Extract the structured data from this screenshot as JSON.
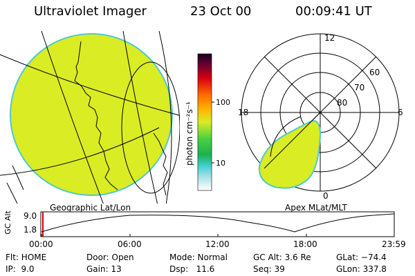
{
  "header": {
    "instrument": "Ultraviolet Imager",
    "date": "23 Oct 00",
    "time": "00:09:41 UT"
  },
  "geo_panel": {
    "caption": "Geographic Lat/Lon"
  },
  "colorbar": {
    "unit_label": "photon cm⁻²s⁻¹",
    "ticks": [
      "100",
      "10"
    ]
  },
  "polar_panel": {
    "caption": "Apex MLat/MLT",
    "mlt_labels": {
      "top": "12",
      "left": "18",
      "right": "6",
      "bottom": "0"
    },
    "lat_labels": [
      "60",
      "70",
      "80"
    ]
  },
  "orbit": {
    "ylabel": "GC Alt",
    "y_ticks": [
      "9.0",
      "1.8"
    ],
    "time_ticks": [
      "00:00",
      "06:00",
      "12:00",
      "18:00",
      "23:59"
    ]
  },
  "info_rows": [
    [
      "Flt: HOME",
      "Door: Open",
      "Mode: Normal",
      "GC Alt: 3.6 Re",
      "GLat: −74.4"
    ],
    [
      "IP:  9.0",
      "Gain: 13",
      "Dsp:   11.6",
      "Seq: 39",
      "GLon: 337.8"
    ]
  ],
  "colors": {
    "emission": "#d9ec24",
    "emission_edge": "#4fc8d0",
    "orbit_marker": "#d00000"
  }
}
